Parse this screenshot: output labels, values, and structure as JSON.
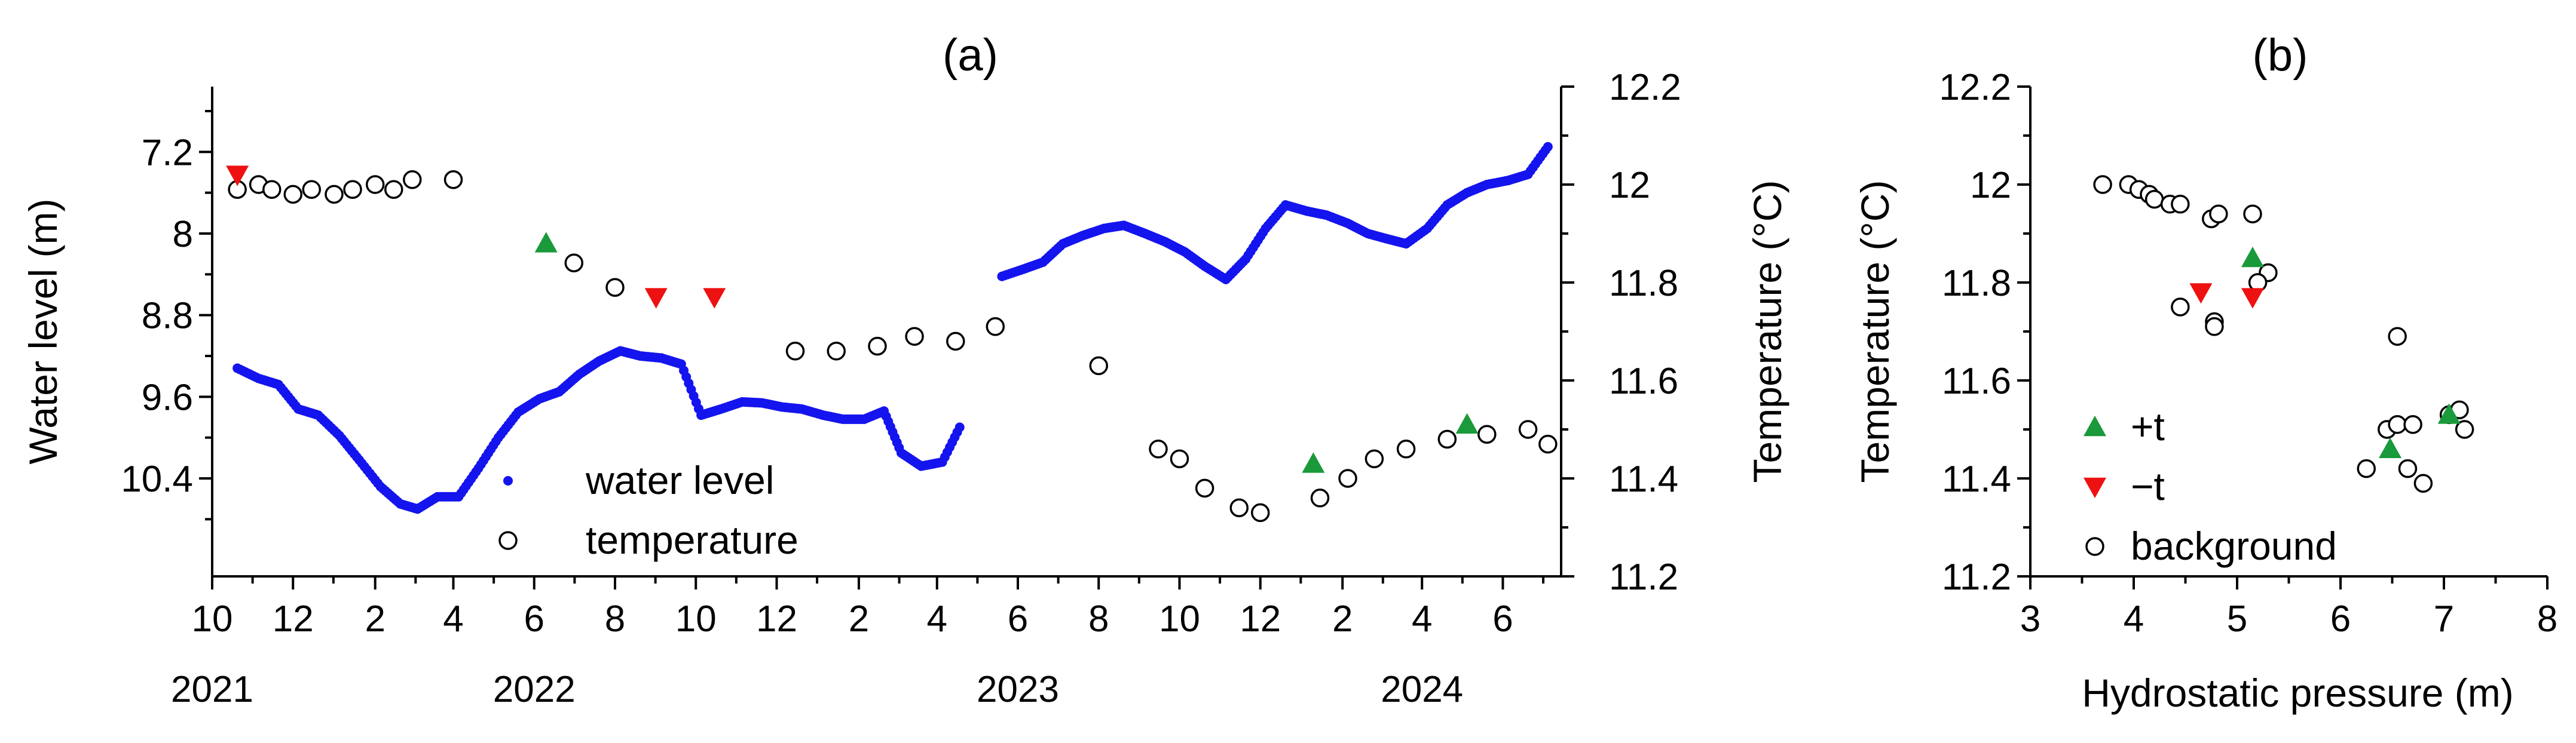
{
  "colors": {
    "water_level": "#1414ee",
    "temperature_marker_stroke": "#000000",
    "plus_t": "#1a9a3a",
    "minus_t": "#ee1111"
  },
  "chart_data": [
    {
      "panel": "(a)",
      "type": "scatter",
      "title": "(a)",
      "x_tick_labels": [
        "10",
        "12",
        "2",
        "4",
        "6",
        "8",
        "10",
        "12",
        "2",
        "4",
        "6",
        "8",
        "10",
        "12",
        "2",
        "4",
        "6"
      ],
      "year_labels": [
        {
          "label": "2021",
          "x": "2021-10-01"
        },
        {
          "label": "2022",
          "x": "2022-06-01"
        },
        {
          "label": "2023",
          "x": "2023-06-01"
        },
        {
          "label": "2024",
          "x": "2024-04-01"
        }
      ],
      "xlim": [
        "2021-10-01",
        "2024-07-15"
      ],
      "left_axis": {
        "label": "Water level (m)",
        "inverted": true,
        "ylim": [
          7.2,
          11.2
        ],
        "ticks": [
          "7.2",
          "8",
          "8.8",
          "9.6",
          "10.4"
        ]
      },
      "right_axis": {
        "label": "Temperature (°C)",
        "ylim": [
          11.2,
          12.2
        ],
        "ticks": [
          "11.2",
          "11.4",
          "11.6",
          "11.8",
          "12",
          "12.2"
        ]
      },
      "legend": {
        "placement": "bottom-center",
        "entries": [
          {
            "label": "water level",
            "marker": "filled-dot"
          },
          {
            "label": "temperature",
            "marker": "open-circle"
          }
        ]
      },
      "series": [
        {
          "name": "water level",
          "axis": "left",
          "marker": "filled-dot",
          "points": [
            [
              "2021-10-20",
              9.32
            ],
            [
              "2021-11-05",
              9.42
            ],
            [
              "2021-11-20",
              9.48
            ],
            [
              "2021-12-05",
              9.72
            ],
            [
              "2021-12-20",
              9.78
            ],
            [
              "2022-01-05",
              9.98
            ],
            [
              "2022-01-20",
              10.22
            ],
            [
              "2022-02-05",
              10.48
            ],
            [
              "2022-02-20",
              10.65
            ],
            [
              "2022-03-05",
              10.7
            ],
            [
              "2022-03-20",
              10.58
            ],
            [
              "2022-04-05",
              10.58
            ],
            [
              "2022-04-20",
              10.3
            ],
            [
              "2022-05-05",
              10.0
            ],
            [
              "2022-05-20",
              9.75
            ],
            [
              "2022-06-05",
              9.62
            ],
            [
              "2022-06-20",
              9.55
            ],
            [
              "2022-07-05",
              9.38
            ],
            [
              "2022-07-20",
              9.25
            ],
            [
              "2022-08-05",
              9.15
            ],
            [
              "2022-08-20",
              9.2
            ],
            [
              "2022-09-05",
              9.22
            ],
            [
              "2022-09-20",
              9.28
            ],
            [
              "2022-10-05",
              9.78
            ],
            [
              "2022-10-20",
              9.72
            ],
            [
              "2022-11-05",
              9.65
            ],
            [
              "2022-11-20",
              9.66
            ],
            [
              "2022-12-05",
              9.7
            ],
            [
              "2022-12-20",
              9.72
            ],
            [
              "2023-01-05",
              9.78
            ],
            [
              "2023-01-20",
              9.82
            ],
            [
              "2023-02-05",
              9.82
            ],
            [
              "2023-02-20",
              9.74
            ],
            [
              "2023-03-05",
              10.15
            ],
            [
              "2023-03-20",
              10.28
            ],
            [
              "2023-04-05",
              10.24
            ],
            [
              "2023-04-20",
              9.85
            ],
            [
              "2023-05-20",
              8.42
            ],
            [
              "2023-06-05",
              8.35
            ],
            [
              "2023-06-20",
              8.28
            ],
            [
              "2023-07-05",
              8.1
            ],
            [
              "2023-07-20",
              8.02
            ],
            [
              "2023-08-05",
              7.95
            ],
            [
              "2023-08-20",
              7.92
            ],
            [
              "2023-09-05",
              8.0
            ],
            [
              "2023-09-20",
              8.08
            ],
            [
              "2023-10-05",
              8.18
            ],
            [
              "2023-10-20",
              8.32
            ],
            [
              "2023-11-05",
              8.45
            ],
            [
              "2023-11-20",
              8.25
            ],
            [
              "2023-12-05",
              7.95
            ],
            [
              "2023-12-20",
              7.72
            ],
            [
              "2024-01-05",
              7.78
            ],
            [
              "2024-01-20",
              7.82
            ],
            [
              "2024-02-05",
              7.9
            ],
            [
              "2024-02-20",
              8.0
            ],
            [
              "2024-03-05",
              8.05
            ],
            [
              "2024-03-20",
              8.1
            ],
            [
              "2024-04-05",
              7.95
            ],
            [
              "2024-04-20",
              7.72
            ],
            [
              "2024-05-05",
              7.6
            ],
            [
              "2024-05-20",
              7.52
            ],
            [
              "2024-06-05",
              7.48
            ],
            [
              "2024-06-20",
              7.42
            ],
            [
              "2024-07-05",
              7.15
            ]
          ]
        },
        {
          "name": "temperature",
          "axis": "right",
          "marker": "open-circle",
          "points": [
            [
              "2021-10-20",
              11.99
            ],
            [
              "2021-11-05",
              12.0
            ],
            [
              "2021-11-15",
              11.99
            ],
            [
              "2021-12-01",
              11.98
            ],
            [
              "2021-12-15",
              11.99
            ],
            [
              "2022-01-01",
              11.98
            ],
            [
              "2022-01-15",
              11.99
            ],
            [
              "2022-02-01",
              12.0
            ],
            [
              "2022-02-15",
              11.99
            ],
            [
              "2022-03-01",
              12.01
            ],
            [
              "2022-04-01",
              12.01
            ],
            [
              "2022-07-01",
              11.84
            ],
            [
              "2022-08-01",
              11.79
            ],
            [
              "2022-12-15",
              11.66
            ],
            [
              "2023-01-15",
              11.66
            ],
            [
              "2023-02-15",
              11.67
            ],
            [
              "2023-03-15",
              11.69
            ],
            [
              "2023-04-15",
              11.68
            ],
            [
              "2023-05-15",
              11.71
            ],
            [
              "2023-08-01",
              11.63
            ],
            [
              "2023-09-15",
              11.46
            ],
            [
              "2023-10-01",
              11.44
            ],
            [
              "2023-10-20",
              11.38
            ],
            [
              "2023-11-15",
              11.34
            ],
            [
              "2023-12-01",
              11.33
            ],
            [
              "2024-01-15",
              11.36
            ],
            [
              "2024-02-05",
              11.4
            ],
            [
              "2024-02-25",
              11.44
            ],
            [
              "2024-03-20",
              11.46
            ],
            [
              "2024-04-20",
              11.48
            ],
            [
              "2024-05-20",
              11.49
            ],
            [
              "2024-06-20",
              11.5
            ],
            [
              "2024-07-05",
              11.47
            ]
          ]
        },
        {
          "name": "+t",
          "axis": "right",
          "marker": "up-triangle",
          "points": [
            [
              "2022-06-10",
              11.88
            ],
            [
              "2024-01-10",
              11.43
            ],
            [
              "2024-05-05",
              11.51
            ]
          ]
        },
        {
          "name": "−t",
          "axis": "right",
          "marker": "down-triangle",
          "points": [
            [
              "2021-10-20",
              12.02
            ],
            [
              "2022-09-01",
              11.77
            ],
            [
              "2022-10-15",
              11.77
            ]
          ]
        }
      ]
    },
    {
      "panel": "(b)",
      "type": "scatter",
      "title": "(b)",
      "xlabel": "Hydrostatic pressure (m)",
      "ylabel": "Temperature (°C)",
      "xlim": [
        3,
        8
      ],
      "ylim": [
        11.2,
        12.2
      ],
      "x_ticks": [
        "3",
        "4",
        "5",
        "6",
        "7",
        "8"
      ],
      "y_ticks": [
        "11.2",
        "11.4",
        "11.6",
        "11.8",
        "12",
        "12.2"
      ],
      "legend": {
        "placement": "bottom-left",
        "entries": [
          {
            "label": "+t",
            "marker": "up-triangle"
          },
          {
            "label": "−t",
            "marker": "down-triangle"
          },
          {
            "label": "background",
            "marker": "open-circle"
          }
        ]
      },
      "series": [
        {
          "name": "background",
          "marker": "open-circle",
          "points": [
            [
              3.7,
              12.0
            ],
            [
              3.95,
              12.0
            ],
            [
              4.05,
              11.99
            ],
            [
              4.15,
              11.98
            ],
            [
              4.2,
              11.97
            ],
            [
              4.35,
              11.96
            ],
            [
              4.45,
              11.96
            ],
            [
              4.75,
              11.93
            ],
            [
              4.82,
              11.94
            ],
            [
              5.15,
              11.94
            ],
            [
              5.3,
              11.82
            ],
            [
              5.2,
              11.8
            ],
            [
              4.45,
              11.75
            ],
            [
              4.78,
              11.72
            ],
            [
              4.78,
              11.71
            ],
            [
              6.55,
              11.69
            ],
            [
              6.25,
              11.42
            ],
            [
              6.45,
              11.5
            ],
            [
              6.55,
              11.51
            ],
            [
              6.7,
              11.51
            ],
            [
              6.65,
              11.42
            ],
            [
              6.8,
              11.39
            ],
            [
              7.05,
              11.53
            ],
            [
              7.15,
              11.54
            ],
            [
              7.2,
              11.5
            ]
          ]
        },
        {
          "name": "+t",
          "marker": "up-triangle",
          "points": [
            [
              5.15,
              11.85
            ],
            [
              6.48,
              11.46
            ],
            [
              7.05,
              11.53
            ]
          ]
        },
        {
          "name": "−t",
          "marker": "down-triangle",
          "points": [
            [
              4.65,
              11.78
            ],
            [
              5.15,
              11.77
            ]
          ]
        }
      ]
    }
  ]
}
